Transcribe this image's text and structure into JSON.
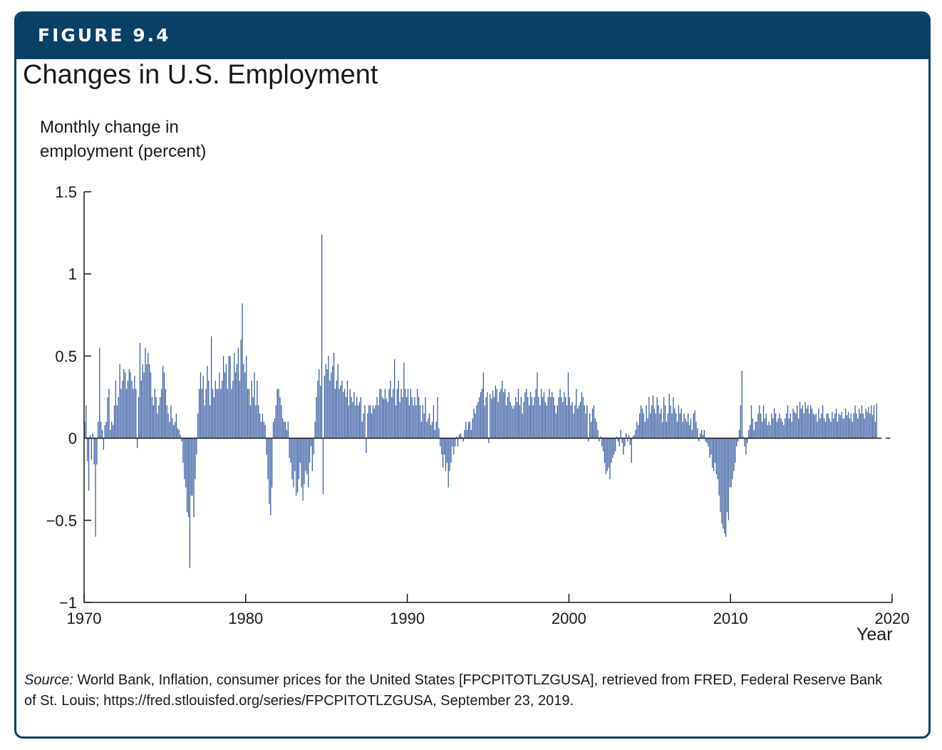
{
  "header": {
    "figure_label": "FIGURE 9.4"
  },
  "colors": {
    "banner": "#0b4066",
    "bars": "#3b5da3",
    "text": "#1a1a1a"
  },
  "chart_data": {
    "type": "bar",
    "title": "Changes in U.S. Employment",
    "ylabel_lines": [
      "Monthly change in",
      "employment (percent)"
    ],
    "xlabel": "Year",
    "xlim": [
      1970,
      2020
    ],
    "ylim": [
      -1,
      1.5
    ],
    "y_ticks": [
      1.5,
      1,
      0.5,
      0,
      -0.5,
      -1
    ],
    "y_tick_labels": [
      "1.5",
      "1",
      "0.5",
      "0",
      "−0.5",
      "−1"
    ],
    "x_ticks": [
      1970,
      1980,
      1990,
      2000,
      2010,
      2020
    ],
    "x_tick_labels": [
      "1970",
      "1980",
      "1990",
      "2000",
      "2010",
      "2020"
    ],
    "grid": false,
    "legend": "none",
    "series": [
      {
        "frequency": "monthly",
        "start": "1970-01",
        "values": [
          0.1,
          0.2,
          -0.14,
          -0.32,
          0.02,
          -0.13,
          0.03,
          -0.16,
          -0.6,
          -0.16,
          0.1,
          0.55,
          0.1,
          0.05,
          -0.07,
          0.08,
          0.1,
          0.25,
          0.3,
          0.05,
          0.1,
          0.08,
          0.2,
          0.35,
          0.2,
          0.25,
          0.45,
          0.3,
          0.35,
          0.42,
          0.4,
          0.3,
          0.35,
          0.42,
          0.4,
          0.35,
          0.3,
          0.38,
          0.3,
          -0.06,
          0.25,
          0.58,
          0.35,
          0.45,
          0.4,
          0.55,
          0.45,
          0.52,
          0.45,
          0.4,
          0.25,
          0.2,
          0.3,
          0.25,
          0.15,
          0.2,
          0.25,
          0.3,
          0.44,
          0.4,
          0.3,
          0.2,
          0.15,
          0.1,
          0.2,
          0.12,
          0.08,
          0.1,
          0.15,
          0.06,
          0.05,
          0.02,
          -0.02,
          -0.15,
          -0.25,
          -0.3,
          -0.45,
          -0.48,
          -0.79,
          -0.35,
          -0.35,
          -0.48,
          -0.25,
          -0.1,
          0.15,
          0.3,
          0.4,
          0.3,
          0.38,
          0.2,
          0.3,
          0.44,
          0.35,
          0.2,
          0.62,
          0.3,
          0.25,
          0.35,
          0.3,
          0.3,
          0.4,
          0.3,
          0.35,
          0.5,
          0.4,
          0.45,
          0.3,
          0.5,
          0.5,
          0.3,
          0.35,
          0.52,
          0.4,
          0.45,
          0.55,
          0.35,
          0.6,
          0.82,
          0.45,
          0.4,
          0.5,
          0.3,
          0.3,
          0.2,
          0.35,
          0.25,
          0.4,
          0.2,
          0.35,
          0.2,
          0.15,
          0.1,
          0.15,
          0.1,
          0.08,
          -0.1,
          -0.25,
          -0.4,
          -0.47,
          -0.3,
          0.1,
          0.12,
          0.2,
          0.3,
          0.3,
          0.25,
          0.2,
          0.12,
          0.1,
          0.1,
          0.05,
          0.1,
          -0.12,
          -0.15,
          -0.25,
          -0.3,
          -0.2,
          -0.35,
          -0.33,
          -0.25,
          -0.15,
          -0.3,
          -0.38,
          -0.28,
          -0.2,
          -0.22,
          -0.3,
          -0.15,
          -0.05,
          -0.2,
          -0.1,
          0.1,
          0.25,
          0.35,
          0.42,
          0.32,
          1.24,
          -0.34,
          0.38,
          0.45,
          0.42,
          0.5,
          0.35,
          0.4,
          0.44,
          0.52,
          0.3,
          0.35,
          0.45,
          0.3,
          0.32,
          0.35,
          0.28,
          0.3,
          0.25,
          0.35,
          0.2,
          0.3,
          0.25,
          0.22,
          0.28,
          0.2,
          0.25,
          0.2,
          0.22,
          0.25,
          0.1,
          0.15,
          0.2,
          -0.09,
          0.15,
          0.2,
          0.2,
          0.15,
          0.2,
          0.18,
          0.2,
          0.25,
          0.2,
          0.3,
          0.3,
          0.25,
          0.24,
          0.3,
          0.24,
          0.22,
          0.3,
          0.35,
          0.25,
          0.3,
          0.48,
          0.2,
          0.3,
          0.35,
          0.22,
          0.3,
          0.25,
          0.46,
          0.3,
          0.25,
          0.3,
          0.2,
          0.3,
          0.25,
          0.2,
          0.25,
          0.2,
          0.3,
          0.25,
          0.2,
          0.1,
          0.2,
          0.15,
          0.25,
          0.1,
          0.12,
          0.15,
          0.08,
          0.1,
          0.2,
          0.05,
          0.1,
          0.25,
          0.06,
          -0.05,
          -0.1,
          -0.18,
          -0.1,
          -0.2,
          -0.15,
          -0.3,
          -0.2,
          -0.15,
          -0.05,
          -0.1,
          -0.05,
          0.01,
          -0.05,
          0.02,
          0.03,
          0.01,
          -0.02,
          0.05,
          0.1,
          0.05,
          0.1,
          0.1,
          0.05,
          0.12,
          0.18,
          0.15,
          0.2,
          0.22,
          0.25,
          0.28,
          0.3,
          0.4,
          0.2,
          0.25,
          0.28,
          -0.03,
          0.27,
          0.24,
          0.29,
          0.25,
          0.32,
          0.3,
          0.22,
          0.28,
          0.3,
          0.35,
          0.28,
          0.3,
          0.2,
          0.25,
          0.28,
          0.22,
          0.2,
          0.18,
          0.2,
          0.25,
          0.22,
          0.3,
          0.2,
          0.25,
          0.15,
          0.22,
          0.28,
          0.3,
          0.25,
          0.2,
          0.28,
          0.25,
          0.2,
          0.25,
          0.3,
          0.4,
          0.25,
          0.2,
          0.3,
          0.25,
          0.28,
          0.22,
          0.2,
          0.25,
          0.3,
          0.25,
          0.28,
          0.25,
          0.2,
          0.15,
          0.2,
          0.25,
          0.3,
          0.25,
          0.22,
          0.28,
          0.25,
          0.2,
          0.4,
          0.25,
          0.2,
          0.22,
          0.15,
          0.2,
          0.3,
          0.18,
          0.2,
          0.22,
          0.28,
          0.25,
          0.2,
          0.15,
          0.2,
          -0.02,
          0.15,
          0.1,
          0.18,
          0.2,
          0.12,
          0.1,
          0.05,
          -0.02,
          0.01,
          -0.05,
          -0.08,
          -0.15,
          -0.22,
          -0.2,
          -0.18,
          -0.25,
          -0.15,
          -0.12,
          -0.1,
          -0.08,
          0.01,
          -0.02,
          -0.05,
          0.05,
          -0.03,
          -0.1,
          -0.05,
          0.03,
          -0.02,
          0.02,
          -0.04,
          -0.15,
          0.01,
          0.02,
          0.05,
          0.1,
          0.08,
          0.15,
          0.2,
          0.18,
          0.15,
          0.1,
          0.2,
          0.12,
          0.25,
          0.15,
          0.2,
          0.26,
          0.18,
          0.15,
          0.25,
          0.2,
          0.15,
          0.18,
          0.1,
          0.25,
          0.2,
          0.1,
          0.15,
          0.27,
          0.2,
          0.15,
          0.25,
          0.18,
          0.15,
          0.1,
          0.2,
          0.15,
          0.18,
          0.1,
          0.15,
          0.12,
          0.1,
          0.15,
          0.08,
          0.12,
          0.05,
          0.15,
          0.17,
          0.1,
          0.06,
          -0.02,
          0.03,
          0.05,
          0.02,
          0.05,
          -0.02,
          -0.03,
          -0.05,
          -0.12,
          -0.1,
          -0.18,
          -0.2,
          -0.15,
          -0.22,
          -0.25,
          -0.35,
          -0.45,
          -0.52,
          -0.55,
          -0.58,
          -0.6,
          -0.45,
          -0.5,
          -0.3,
          -0.3,
          -0.25,
          -0.2,
          -0.15,
          -0.05,
          -0.02,
          0.05,
          0.2,
          0.41,
          0.01,
          -0.05,
          -0.1,
          -0.03,
          0.05,
          0.08,
          0.2,
          0.12,
          0.05,
          0.1,
          0.1,
          0.15,
          0.2,
          0.15,
          0.1,
          0.2,
          0.12,
          0.15,
          0.08,
          0.1,
          0.08,
          0.15,
          0.12,
          0.18,
          0.15,
          0.1,
          0.12,
          0.15,
          0.12,
          0.1,
          0.08,
          0.12,
          0.15,
          0.2,
          0.12,
          0.15,
          0.1,
          0.18,
          0.16,
          0.15,
          0.2,
          0.12,
          0.22,
          0.18,
          0.2,
          0.15,
          0.22,
          0.18,
          0.2,
          0.15,
          0.2,
          0.18,
          0.15,
          0.14,
          0.15,
          0.1,
          0.18,
          0.12,
          0.15,
          0.2,
          0.12,
          0.1,
          0.15,
          0.15,
          0.12,
          0.1,
          0.16,
          0.12,
          0.15,
          0.18,
          0.1,
          0.15,
          0.14,
          0.16,
          0.12,
          0.12,
          0.18,
          0.14,
          0.16,
          0.12,
          0.15,
          0.1,
          0.15,
          0.2,
          0.15,
          0.12,
          0.18,
          0.15,
          0.2,
          0.15,
          0.12,
          0.18,
          0.16,
          0.19,
          0.15,
          0.2,
          0.14,
          0.2,
          0.1,
          0.21
        ]
      }
    ]
  },
  "source": {
    "label": "Source:",
    "text": "World Bank, Inflation, consumer prices for the United States [FPCPITOTLZGUSA], retrieved from FRED, Federal Reserve Bank of St. Louis; https://fred.stlouisfed.org/series/FPCPITOTLZGUSA, September 23, 2019."
  }
}
